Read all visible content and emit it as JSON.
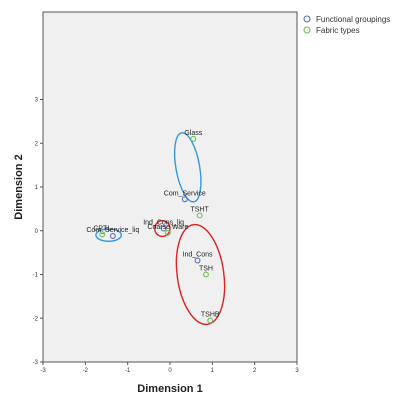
{
  "chart_data": {
    "type": "scatter",
    "xlabel": "Dimension 1",
    "ylabel": "Dimension 2",
    "xlim": [
      -3,
      3
    ],
    "ylim": [
      -3,
      5
    ],
    "x_ticks": [
      "-3",
      "-2",
      "-1",
      "0",
      "1",
      "2",
      "3"
    ],
    "y_ticks": [
      "-3",
      "-2",
      "-1",
      "0",
      "1",
      "2",
      "3"
    ],
    "grid": false,
    "legend_position": "top-right",
    "series": [
      {
        "name": "Functional groupings",
        "color": "#5b6fb5",
        "points": [
          {
            "label": "Com_Service",
            "x": 0.35,
            "y": 0.72
          },
          {
            "label": "Ind_Cons_liq",
            "x": -0.15,
            "y": 0.05
          },
          {
            "label": "Com_Service_liq",
            "x": -1.35,
            "y": -0.12
          },
          {
            "label": "Ind_Cons",
            "x": 0.65,
            "y": -0.68
          }
        ]
      },
      {
        "name": "Fabric types",
        "color": "#6bbf5a",
        "points": [
          {
            "label": "Glass",
            "x": 0.55,
            "y": 2.1
          },
          {
            "label": "TSHT",
            "x": 0.7,
            "y": 0.35
          },
          {
            "label": "CPTL",
            "x": -1.6,
            "y": -0.08
          },
          {
            "label": "Coarse Ware",
            "x": -0.05,
            "y": -0.05
          },
          {
            "label": "TSH",
            "x": 0.85,
            "y": -1.0
          },
          {
            "label": "TSHB",
            "x": 0.95,
            "y": -2.05
          }
        ]
      }
    ],
    "groupings": [
      {
        "color": "#3399dd",
        "cx": 0.42,
        "cy": 1.45,
        "rx": 0.28,
        "ry": 0.8,
        "rot": -10
      },
      {
        "color": "#dd2222",
        "cx": -0.18,
        "cy": 0.05,
        "rx": 0.18,
        "ry": 0.18,
        "rot": 0
      },
      {
        "color": "#3399dd",
        "cx": -1.45,
        "cy": -0.1,
        "rx": 0.3,
        "ry": 0.14,
        "rot": 0
      },
      {
        "color": "#dd2222",
        "cx": 0.72,
        "cy": -1.0,
        "rx": 0.55,
        "ry": 1.15,
        "rot": -8
      }
    ]
  }
}
